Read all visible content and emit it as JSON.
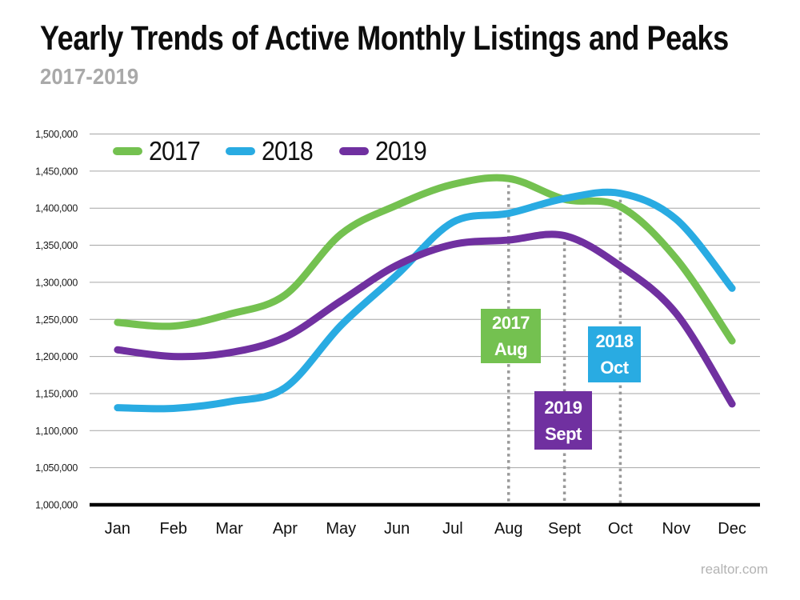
{
  "header": {
    "title": "Yearly Trends of Active Monthly Listings and Peaks",
    "subtitle": "2017-2019"
  },
  "watermark": "realtor.com",
  "chart_data": {
    "type": "line",
    "title": "Yearly Trends of Active Monthly Listings and Peaks",
    "subtitle": "2017-2019",
    "categories": [
      "Jan",
      "Feb",
      "Mar",
      "Apr",
      "May",
      "Jun",
      "Jul",
      "Aug",
      "Sept",
      "Oct",
      "Nov",
      "Dec"
    ],
    "series": [
      {
        "name": "2017",
        "color": "#74C150",
        "values": [
          1246000,
          1241000,
          1257000,
          1283000,
          1365000,
          1404000,
          1432000,
          1440000,
          1412000,
          1402000,
          1332000,
          1221000
        ]
      },
      {
        "name": "2018",
        "color": "#29ABE2",
        "values": [
          1131000,
          1130000,
          1139000,
          1158000,
          1242000,
          1310000,
          1381000,
          1393000,
          1413000,
          1420000,
          1385000,
          1292000
        ]
      },
      {
        "name": "2019",
        "color": "#7030A0",
        "values": [
          1209000,
          1200000,
          1205000,
          1226000,
          1275000,
          1323000,
          1351000,
          1357000,
          1363000,
          1322000,
          1258000,
          1136000
        ]
      }
    ],
    "ylim": [
      1000000,
      1500000
    ],
    "ytick_step": 50000,
    "ytick_labels": [
      "1,000,000",
      "1,050,000",
      "1,100,000",
      "1,150,000",
      "1,200,000",
      "1,250,000",
      "1,300,000",
      "1,350,000",
      "1,400,000",
      "1,450,000",
      "1,500,000"
    ],
    "grid": "horizontal",
    "legend_position": "top-left-inside",
    "gridline_color": "#A6A6A6",
    "axis_color": "#000000",
    "dotted_line_color": "#999999",
    "annotations": [
      {
        "line1": "2017",
        "line2": "Aug",
        "month": "Aug",
        "series": "2017",
        "peak_value": 1440000
      },
      {
        "line1": "2018",
        "line2": "Oct",
        "month": "Oct",
        "series": "2018",
        "peak_value": 1420000
      },
      {
        "line1": "2019",
        "line2": "Sept",
        "month": "Sept",
        "series": "2019",
        "peak_value": 1363000
      }
    ]
  }
}
